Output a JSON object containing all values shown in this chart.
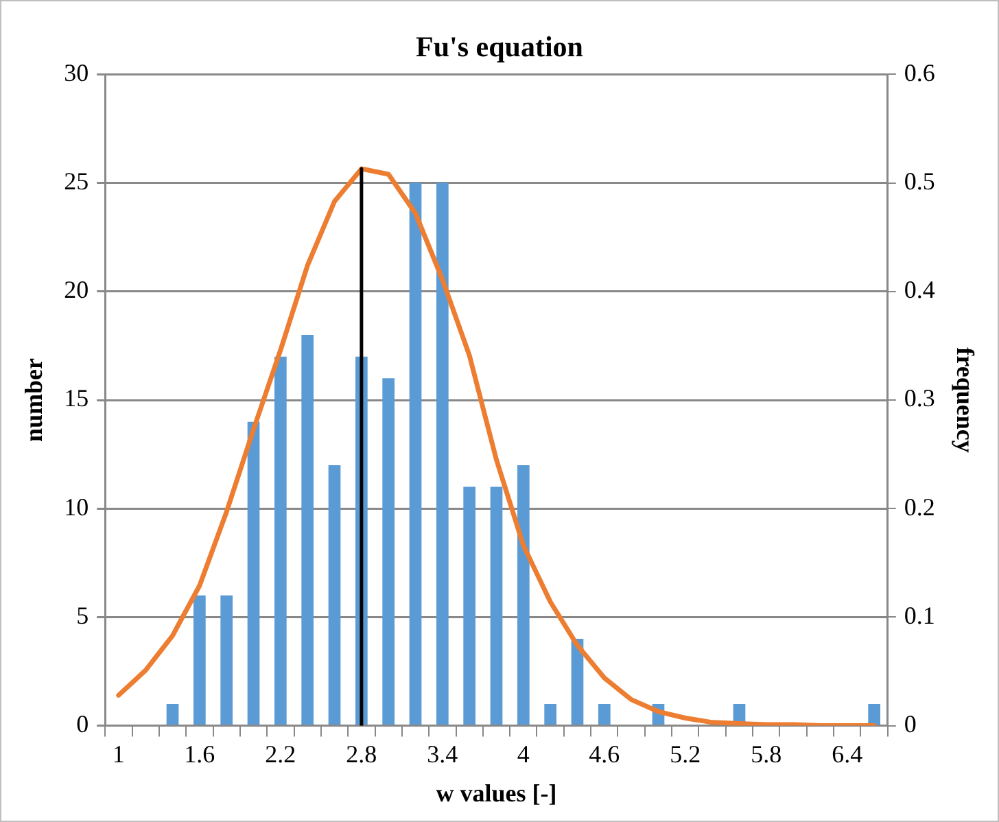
{
  "chart_data": {
    "type": "bar",
    "title": "Fu's equation",
    "xlabel": "w values [-]",
    "ylabel": "number",
    "y2label": "frequency",
    "categories": [
      "1",
      null,
      null,
      "1.6",
      null,
      null,
      "2.2",
      null,
      null,
      "2.8",
      null,
      null,
      "3.4",
      null,
      null,
      "4",
      null,
      null,
      "4.6",
      null,
      null,
      "5.2",
      null,
      null,
      "5.8",
      null,
      null,
      "6.4",
      null
    ],
    "series": [
      {
        "color": "#5b9bd5",
        "values": [
          0,
          0,
          1,
          6,
          6,
          14,
          17,
          18,
          12,
          17,
          16,
          25,
          25,
          11,
          11,
          12,
          1,
          4,
          1,
          0,
          1,
          0,
          0,
          1,
          0,
          0,
          0,
          0,
          1
        ]
      },
      {
        "type": "line",
        "axis": "y2",
        "color": "#ed7d31",
        "values": [
          0.028,
          0.051,
          0.083,
          0.129,
          0.197,
          0.273,
          0.346,
          0.424,
          0.483,
          0.513,
          0.508,
          0.472,
          0.411,
          0.341,
          0.245,
          0.166,
          0.114,
          0.074,
          0.044,
          0.024,
          0.013,
          0.007,
          0.003,
          0.002,
          0.001,
          0.001,
          0,
          0,
          0
        ]
      },
      {
        "type": "line",
        "axis": "y2",
        "color": "#000000",
        "x": [
          "2.8",
          "2.8"
        ],
        "values": [
          0,
          0.513
        ]
      }
    ],
    "ylim": [
      0,
      30
    ],
    "yticks": [
      0,
      5,
      10,
      15,
      20,
      25,
      30
    ],
    "y2lim": [
      0,
      0.6
    ],
    "y2ticks": [
      0,
      0.1,
      0.2,
      0.3,
      0.4,
      0.5,
      0.6
    ],
    "grid": "y",
    "legend": false,
    "marker": "none"
  }
}
